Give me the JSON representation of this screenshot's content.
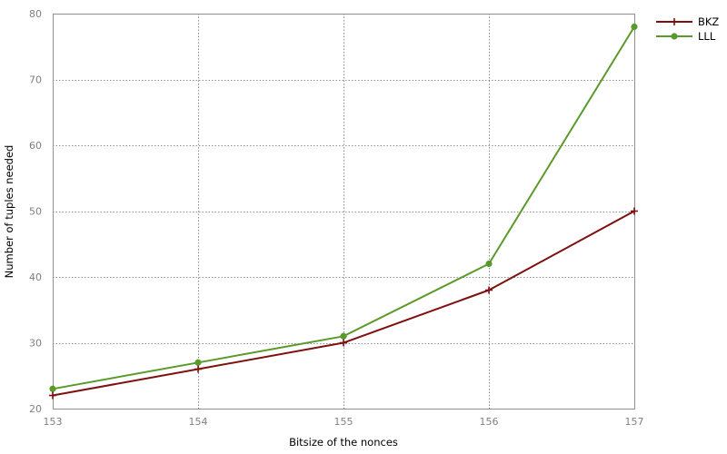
{
  "chart_data": {
    "type": "line",
    "title": "",
    "xlabel": "Bitsize of the nonces",
    "ylabel": "Number of tuples needed",
    "x": [
      153,
      154,
      155,
      156,
      157
    ],
    "x_ticks": [
      "153",
      "154",
      "155",
      "156",
      "157"
    ],
    "y_ticks": [
      "20",
      "30",
      "40",
      "50",
      "60",
      "70",
      "80"
    ],
    "xlim": [
      153,
      157
    ],
    "ylim": [
      20,
      80
    ],
    "grid": true,
    "legend_position": "top-right-outside",
    "series": [
      {
        "name": "BKZ",
        "values": [
          22,
          26,
          30,
          38,
          50
        ],
        "color": "#7f1010",
        "marker": "plus"
      },
      {
        "name": "LLL",
        "values": [
          23,
          27,
          31,
          42,
          78
        ],
        "color": "#5a9a2a",
        "marker": "circle"
      }
    ]
  }
}
